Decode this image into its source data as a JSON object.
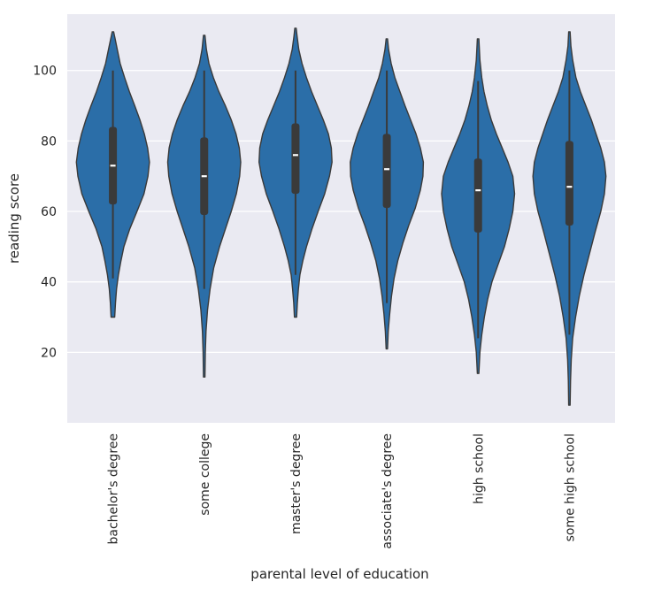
{
  "chart_data": {
    "type": "violin",
    "xlabel": "parental level of education",
    "ylabel": "reading score",
    "ylim": [
      0,
      116
    ],
    "yticks": [
      20,
      40,
      60,
      80,
      100
    ],
    "grid": true,
    "colors": {
      "violin_fill": "#2b6ea8",
      "violin_edge": "#3a3a3a",
      "box": "#3a3a3a",
      "median": "#ffffff",
      "panel": "#eaeaf2",
      "grid": "#ffffff"
    },
    "categories": [
      "bachelor's degree",
      "some college",
      "master's degree",
      "associate's degree",
      "high school",
      "some high school"
    ],
    "violins": [
      {
        "min": 30,
        "max": 111,
        "whisker_low": 41,
        "whisker_high": 100,
        "q1": 62,
        "median": 73,
        "q3": 84,
        "profile": [
          [
            30,
            0.05
          ],
          [
            34,
            0.07
          ],
          [
            38,
            0.1
          ],
          [
            42,
            0.15
          ],
          [
            46,
            0.22
          ],
          [
            50,
            0.3
          ],
          [
            55,
            0.46
          ],
          [
            60,
            0.66
          ],
          [
            65,
            0.85
          ],
          [
            70,
            0.96
          ],
          [
            74,
            1.0
          ],
          [
            78,
            0.95
          ],
          [
            82,
            0.86
          ],
          [
            86,
            0.74
          ],
          [
            90,
            0.6
          ],
          [
            94,
            0.45
          ],
          [
            98,
            0.32
          ],
          [
            102,
            0.2
          ],
          [
            106,
            0.12
          ],
          [
            109,
            0.06
          ],
          [
            111,
            0.02
          ]
        ]
      },
      {
        "min": 13,
        "max": 110,
        "whisker_low": 38,
        "whisker_high": 100,
        "q1": 59,
        "median": 70,
        "q3": 81,
        "profile": [
          [
            13,
            0.02
          ],
          [
            20,
            0.03
          ],
          [
            26,
            0.05
          ],
          [
            32,
            0.09
          ],
          [
            38,
            0.16
          ],
          [
            44,
            0.26
          ],
          [
            50,
            0.42
          ],
          [
            55,
            0.58
          ],
          [
            60,
            0.74
          ],
          [
            65,
            0.88
          ],
          [
            70,
            0.97
          ],
          [
            74,
            1.0
          ],
          [
            78,
            0.96
          ],
          [
            82,
            0.87
          ],
          [
            86,
            0.74
          ],
          [
            90,
            0.58
          ],
          [
            94,
            0.4
          ],
          [
            98,
            0.25
          ],
          [
            102,
            0.13
          ],
          [
            106,
            0.06
          ],
          [
            110,
            0.02
          ]
        ]
      },
      {
        "min": 30,
        "max": 112,
        "whisker_low": 42,
        "whisker_high": 100,
        "q1": 65,
        "median": 76,
        "q3": 85,
        "profile": [
          [
            30,
            0.03
          ],
          [
            34,
            0.05
          ],
          [
            38,
            0.08
          ],
          [
            42,
            0.12
          ],
          [
            46,
            0.2
          ],
          [
            50,
            0.3
          ],
          [
            55,
            0.45
          ],
          [
            60,
            0.62
          ],
          [
            65,
            0.8
          ],
          [
            70,
            0.93
          ],
          [
            74,
            1.0
          ],
          [
            78,
            0.98
          ],
          [
            82,
            0.9
          ],
          [
            86,
            0.76
          ],
          [
            90,
            0.6
          ],
          [
            94,
            0.44
          ],
          [
            98,
            0.3
          ],
          [
            102,
            0.18
          ],
          [
            106,
            0.09
          ],
          [
            110,
            0.04
          ],
          [
            112,
            0.02
          ]
        ]
      },
      {
        "min": 21,
        "max": 109,
        "whisker_low": 34,
        "whisker_high": 100,
        "q1": 61,
        "median": 72,
        "q3": 82,
        "profile": [
          [
            21,
            0.02
          ],
          [
            26,
            0.04
          ],
          [
            31,
            0.08
          ],
          [
            36,
            0.13
          ],
          [
            41,
            0.2
          ],
          [
            46,
            0.3
          ],
          [
            51,
            0.44
          ],
          [
            56,
            0.6
          ],
          [
            61,
            0.78
          ],
          [
            66,
            0.92
          ],
          [
            70,
            0.99
          ],
          [
            74,
            1.0
          ],
          [
            78,
            0.92
          ],
          [
            82,
            0.8
          ],
          [
            86,
            0.65
          ],
          [
            90,
            0.5
          ],
          [
            94,
            0.36
          ],
          [
            98,
            0.22
          ],
          [
            102,
            0.12
          ],
          [
            106,
            0.05
          ],
          [
            109,
            0.02
          ]
        ]
      },
      {
        "min": 14,
        "max": 109,
        "whisker_low": 24,
        "whisker_high": 97,
        "q1": 54,
        "median": 66,
        "q3": 75,
        "profile": [
          [
            14,
            0.02
          ],
          [
            20,
            0.05
          ],
          [
            25,
            0.1
          ],
          [
            30,
            0.17
          ],
          [
            35,
            0.26
          ],
          [
            40,
            0.38
          ],
          [
            45,
            0.55
          ],
          [
            50,
            0.72
          ],
          [
            55,
            0.85
          ],
          [
            60,
            0.95
          ],
          [
            65,
            1.0
          ],
          [
            70,
            0.95
          ],
          [
            74,
            0.82
          ],
          [
            78,
            0.66
          ],
          [
            82,
            0.5
          ],
          [
            86,
            0.36
          ],
          [
            90,
            0.25
          ],
          [
            94,
            0.16
          ],
          [
            98,
            0.1
          ],
          [
            103,
            0.05
          ],
          [
            109,
            0.02
          ]
        ]
      },
      {
        "min": 5,
        "max": 111,
        "whisker_low": 25,
        "whisker_high": 100,
        "q1": 56,
        "median": 67,
        "q3": 80,
        "profile": [
          [
            5,
            0.02
          ],
          [
            12,
            0.03
          ],
          [
            18,
            0.05
          ],
          [
            24,
            0.09
          ],
          [
            30,
            0.17
          ],
          [
            36,
            0.27
          ],
          [
            42,
            0.4
          ],
          [
            48,
            0.55
          ],
          [
            54,
            0.7
          ],
          [
            60,
            0.86
          ],
          [
            65,
            0.96
          ],
          [
            70,
            1.0
          ],
          [
            74,
            0.96
          ],
          [
            78,
            0.86
          ],
          [
            82,
            0.73
          ],
          [
            86,
            0.6
          ],
          [
            90,
            0.45
          ],
          [
            94,
            0.3
          ],
          [
            98,
            0.18
          ],
          [
            103,
            0.09
          ],
          [
            107,
            0.04
          ],
          [
            111,
            0.02
          ]
        ]
      }
    ]
  }
}
